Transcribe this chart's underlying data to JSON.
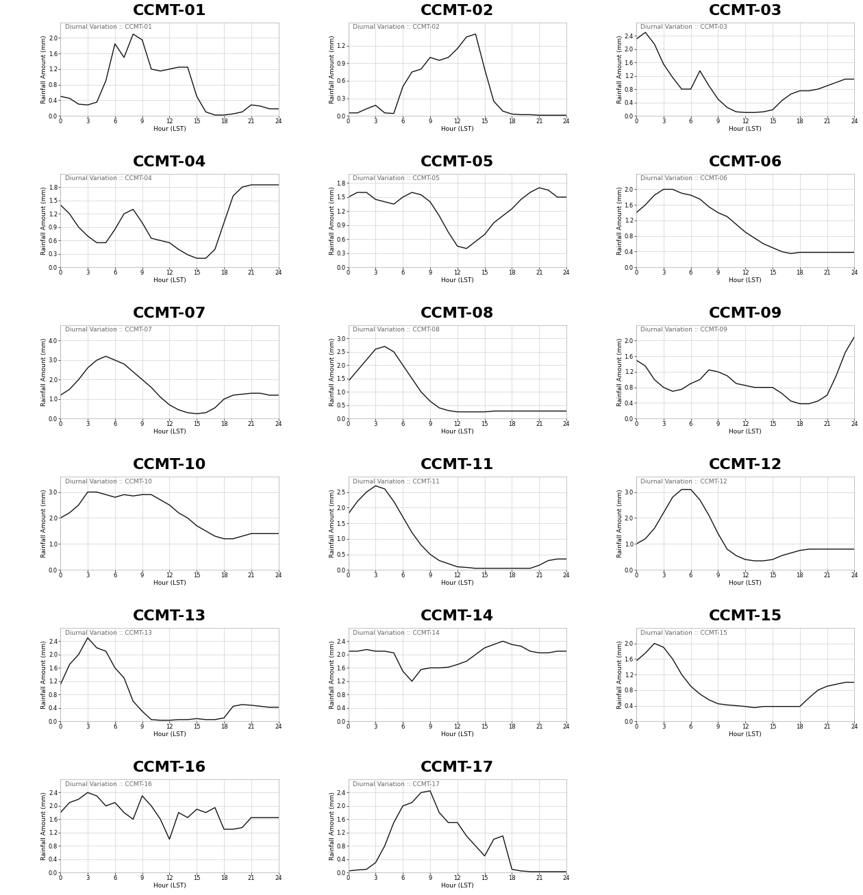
{
  "title_color": "#000000",
  "title_fontsize": 16,
  "title_fontweight": "bold",
  "subtitle_fontsize": 6.5,
  "subtitle_color": "#666666",
  "axis_label_fontsize": 6.5,
  "tick_fontsize": 6,
  "line_color": "#111111",
  "line_width": 1.0,
  "background_color": "#ffffff",
  "grid_color": "#d0d0d0",
  "plots": [
    {
      "title": "CCMT-01",
      "subtitle": "Diurnal Variation :: CCMT-01",
      "ylim": [
        0.0,
        2.4
      ],
      "yticks": [
        0.0,
        0.4,
        0.8,
        1.2,
        1.6,
        2.0
      ],
      "x": [
        0,
        1,
        2,
        3,
        4,
        5,
        6,
        7,
        8,
        9,
        10,
        11,
        12,
        13,
        14,
        15,
        16,
        17,
        18,
        19,
        20,
        21,
        22,
        23,
        24
      ],
      "y": [
        0.5,
        0.45,
        0.3,
        0.28,
        0.35,
        0.9,
        1.85,
        1.5,
        2.1,
        1.95,
        1.2,
        1.15,
        1.2,
        1.25,
        1.25,
        0.5,
        0.1,
        0.02,
        0.02,
        0.05,
        0.1,
        0.28,
        0.25,
        0.18,
        0.18
      ]
    },
    {
      "title": "CCMT-02",
      "subtitle": "Diurnal Variation :: CCMT-02",
      "ylim": [
        0.0,
        1.6
      ],
      "yticks": [
        0.0,
        0.3,
        0.6,
        0.9,
        1.2
      ],
      "x": [
        0,
        1,
        2,
        3,
        4,
        5,
        6,
        7,
        8,
        9,
        10,
        11,
        12,
        13,
        14,
        15,
        16,
        17,
        18,
        19,
        20,
        21,
        22,
        23,
        24
      ],
      "y": [
        0.05,
        0.05,
        0.12,
        0.18,
        0.05,
        0.04,
        0.5,
        0.75,
        0.8,
        1.0,
        0.95,
        1.0,
        1.15,
        1.35,
        1.4,
        0.8,
        0.25,
        0.08,
        0.03,
        0.02,
        0.02,
        0.01,
        0.01,
        0.01,
        0.01
      ]
    },
    {
      "title": "CCMT-03",
      "subtitle": "Diurnal Variation :: CCMT-03",
      "ylim": [
        0.0,
        2.8
      ],
      "yticks": [
        0.0,
        0.4,
        0.8,
        1.2,
        1.6,
        2.0,
        2.4
      ],
      "x": [
        0,
        1,
        2,
        3,
        4,
        5,
        6,
        7,
        8,
        9,
        10,
        11,
        12,
        13,
        14,
        15,
        16,
        17,
        18,
        19,
        20,
        21,
        22,
        23,
        24
      ],
      "y": [
        2.3,
        2.5,
        2.15,
        1.55,
        1.15,
        0.8,
        0.8,
        1.35,
        0.9,
        0.5,
        0.25,
        0.12,
        0.1,
        0.1,
        0.12,
        0.18,
        0.45,
        0.65,
        0.75,
        0.75,
        0.8,
        0.9,
        1.0,
        1.1,
        1.1
      ]
    },
    {
      "title": "CCMT-04",
      "subtitle": "Diurnal Variation :: CCMT-04",
      "ylim": [
        0.0,
        2.1
      ],
      "yticks": [
        0.0,
        0.3,
        0.6,
        0.9,
        1.2,
        1.5,
        1.8
      ],
      "x": [
        0,
        1,
        2,
        3,
        4,
        5,
        6,
        7,
        8,
        9,
        10,
        11,
        12,
        13,
        14,
        15,
        16,
        17,
        18,
        19,
        20,
        21,
        22,
        23,
        24
      ],
      "y": [
        1.4,
        1.2,
        0.9,
        0.7,
        0.55,
        0.55,
        0.85,
        1.2,
        1.3,
        1.0,
        0.65,
        0.6,
        0.55,
        0.4,
        0.28,
        0.2,
        0.2,
        0.4,
        1.0,
        1.6,
        1.8,
        1.85,
        1.85,
        1.85,
        1.85
      ]
    },
    {
      "title": "CCMT-05",
      "subtitle": "Diurnal Variation :: CCMT-05",
      "ylim": [
        0.0,
        2.0
      ],
      "yticks": [
        0.0,
        0.3,
        0.6,
        0.9,
        1.2,
        1.5,
        1.8
      ],
      "x": [
        0,
        1,
        2,
        3,
        4,
        5,
        6,
        7,
        8,
        9,
        10,
        11,
        12,
        13,
        14,
        15,
        16,
        17,
        18,
        19,
        20,
        21,
        22,
        23,
        24
      ],
      "y": [
        1.5,
        1.6,
        1.6,
        1.45,
        1.4,
        1.35,
        1.5,
        1.6,
        1.55,
        1.4,
        1.1,
        0.75,
        0.45,
        0.4,
        0.55,
        0.7,
        0.95,
        1.1,
        1.25,
        1.45,
        1.6,
        1.7,
        1.65,
        1.5,
        1.5
      ]
    },
    {
      "title": "CCMT-06",
      "subtitle": "Diurnal Variation :: CCMT-06",
      "ylim": [
        0.0,
        2.4
      ],
      "yticks": [
        0.0,
        0.4,
        0.8,
        1.2,
        1.6,
        2.0
      ],
      "x": [
        0,
        1,
        2,
        3,
        4,
        5,
        6,
        7,
        8,
        9,
        10,
        11,
        12,
        13,
        14,
        15,
        16,
        17,
        18,
        19,
        20,
        21,
        22,
        23,
        24
      ],
      "y": [
        1.4,
        1.6,
        1.85,
        2.0,
        2.0,
        1.9,
        1.85,
        1.75,
        1.55,
        1.4,
        1.3,
        1.1,
        0.9,
        0.75,
        0.6,
        0.5,
        0.4,
        0.35,
        0.38,
        0.38,
        0.38,
        0.38,
        0.38,
        0.38,
        0.38
      ]
    },
    {
      "title": "CCMT-07",
      "subtitle": "Diurnal Variation :: CCMT-07",
      "ylim": [
        0.0,
        4.8
      ],
      "yticks": [
        0.0,
        1.0,
        2.0,
        3.0,
        4.0
      ],
      "x": [
        0,
        1,
        2,
        3,
        4,
        5,
        6,
        7,
        8,
        9,
        10,
        11,
        12,
        13,
        14,
        15,
        16,
        17,
        18,
        19,
        20,
        21,
        22,
        23,
        24
      ],
      "y": [
        1.2,
        1.5,
        2.0,
        2.6,
        3.0,
        3.2,
        3.0,
        2.8,
        2.4,
        2.0,
        1.6,
        1.1,
        0.7,
        0.45,
        0.3,
        0.25,
        0.3,
        0.55,
        1.0,
        1.2,
        1.25,
        1.3,
        1.3,
        1.2,
        1.2
      ]
    },
    {
      "title": "CCMT-08",
      "subtitle": "Diurnal Variation :: CCMT-08",
      "ylim": [
        0.0,
        3.5
      ],
      "yticks": [
        0.0,
        0.5,
        1.0,
        1.5,
        2.0,
        2.5,
        3.0
      ],
      "x": [
        0,
        1,
        2,
        3,
        4,
        5,
        6,
        7,
        8,
        9,
        10,
        11,
        12,
        13,
        14,
        15,
        16,
        17,
        18,
        19,
        20,
        21,
        22,
        23,
        24
      ],
      "y": [
        1.4,
        1.8,
        2.2,
        2.6,
        2.7,
        2.5,
        2.0,
        1.5,
        1.0,
        0.65,
        0.4,
        0.3,
        0.25,
        0.25,
        0.25,
        0.25,
        0.28,
        0.28,
        0.28,
        0.28,
        0.28,
        0.28,
        0.28,
        0.28,
        0.28
      ]
    },
    {
      "title": "CCMT-09",
      "subtitle": "Diurnal Variation :: CCMT-09",
      "ylim": [
        0.0,
        2.4
      ],
      "yticks": [
        0.0,
        0.4,
        0.8,
        1.2,
        1.6,
        2.0
      ],
      "x": [
        0,
        1,
        2,
        3,
        4,
        5,
        6,
        7,
        8,
        9,
        10,
        11,
        12,
        13,
        14,
        15,
        16,
        17,
        18,
        19,
        20,
        21,
        22,
        23,
        24
      ],
      "y": [
        1.5,
        1.35,
        1.0,
        0.8,
        0.7,
        0.75,
        0.9,
        1.0,
        1.25,
        1.2,
        1.1,
        0.9,
        0.85,
        0.8,
        0.8,
        0.8,
        0.65,
        0.45,
        0.38,
        0.38,
        0.45,
        0.6,
        1.1,
        1.7,
        2.1
      ]
    },
    {
      "title": "CCMT-10",
      "subtitle": "Diurnal Variation :: CCMT-10",
      "ylim": [
        0.0,
        3.6
      ],
      "yticks": [
        0.0,
        1.0,
        2.0,
        3.0
      ],
      "x": [
        0,
        1,
        2,
        3,
        4,
        5,
        6,
        7,
        8,
        9,
        10,
        11,
        12,
        13,
        14,
        15,
        16,
        17,
        18,
        19,
        20,
        21,
        22,
        23,
        24
      ],
      "y": [
        2.0,
        2.2,
        2.5,
        3.0,
        3.0,
        2.9,
        2.8,
        2.9,
        2.85,
        2.9,
        2.9,
        2.7,
        2.5,
        2.2,
        2.0,
        1.7,
        1.5,
        1.3,
        1.2,
        1.2,
        1.3,
        1.4,
        1.4,
        1.4,
        1.4
      ]
    },
    {
      "title": "CCMT-11",
      "subtitle": "Diurnal Variation :: CCMT-11",
      "ylim": [
        0.0,
        3.0
      ],
      "yticks": [
        0.0,
        0.5,
        1.0,
        1.5,
        2.0,
        2.5
      ],
      "x": [
        0,
        1,
        2,
        3,
        4,
        5,
        6,
        7,
        8,
        9,
        10,
        11,
        12,
        13,
        14,
        15,
        16,
        17,
        18,
        19,
        20,
        21,
        22,
        23,
        24
      ],
      "y": [
        1.8,
        2.2,
        2.5,
        2.7,
        2.6,
        2.2,
        1.7,
        1.2,
        0.8,
        0.5,
        0.3,
        0.2,
        0.1,
        0.08,
        0.05,
        0.05,
        0.05,
        0.05,
        0.05,
        0.05,
        0.05,
        0.15,
        0.3,
        0.35,
        0.35
      ]
    },
    {
      "title": "CCMT-12",
      "subtitle": "Diurnal Variation :: CCMT-12",
      "ylim": [
        0.0,
        3.6
      ],
      "yticks": [
        0.0,
        1.0,
        2.0,
        3.0
      ],
      "x": [
        0,
        1,
        2,
        3,
        4,
        5,
        6,
        7,
        8,
        9,
        10,
        11,
        12,
        13,
        14,
        15,
        16,
        17,
        18,
        19,
        20,
        21,
        22,
        23,
        24
      ],
      "y": [
        1.0,
        1.2,
        1.6,
        2.2,
        2.8,
        3.1,
        3.1,
        2.7,
        2.1,
        1.4,
        0.8,
        0.55,
        0.4,
        0.35,
        0.35,
        0.4,
        0.55,
        0.65,
        0.75,
        0.8,
        0.8,
        0.8,
        0.8,
        0.8,
        0.8
      ]
    },
    {
      "title": "CCMT-13",
      "subtitle": "Diurnal Variation :: CCMT-13",
      "ylim": [
        0.0,
        2.8
      ],
      "yticks": [
        0.0,
        0.4,
        0.8,
        1.2,
        1.6,
        2.0,
        2.4
      ],
      "x": [
        0,
        1,
        2,
        3,
        4,
        5,
        6,
        7,
        8,
        9,
        10,
        11,
        12,
        13,
        14,
        15,
        16,
        17,
        18,
        19,
        20,
        21,
        22,
        23,
        24
      ],
      "y": [
        1.1,
        1.7,
        2.0,
        2.5,
        2.2,
        2.1,
        1.6,
        1.3,
        0.6,
        0.3,
        0.05,
        0.03,
        0.03,
        0.05,
        0.05,
        0.08,
        0.05,
        0.05,
        0.1,
        0.45,
        0.5,
        0.48,
        0.45,
        0.42,
        0.42
      ]
    },
    {
      "title": "CCMT-14",
      "subtitle": "Diurnal Variation :: CCMT-14",
      "ylim": [
        0.0,
        2.8
      ],
      "yticks": [
        0.0,
        0.4,
        0.8,
        1.2,
        1.6,
        2.0,
        2.4
      ],
      "x": [
        0,
        1,
        2,
        3,
        4,
        5,
        6,
        7,
        8,
        9,
        10,
        11,
        12,
        13,
        14,
        15,
        16,
        17,
        18,
        19,
        20,
        21,
        22,
        23,
        24
      ],
      "y": [
        2.1,
        2.1,
        2.15,
        2.1,
        2.1,
        2.05,
        1.5,
        1.2,
        1.55,
        1.6,
        1.6,
        1.62,
        1.7,
        1.8,
        2.0,
        2.2,
        2.3,
        2.4,
        2.3,
        2.25,
        2.1,
        2.05,
        2.05,
        2.1,
        2.1
      ]
    },
    {
      "title": "CCMT-15",
      "subtitle": "Diurnal Variation :: CCMT-15",
      "ylim": [
        0.0,
        2.4
      ],
      "yticks": [
        0.0,
        0.4,
        0.8,
        1.2,
        1.6,
        2.0
      ],
      "x": [
        0,
        1,
        2,
        3,
        4,
        5,
        6,
        7,
        8,
        9,
        10,
        11,
        12,
        13,
        14,
        15,
        16,
        17,
        18,
        19,
        20,
        21,
        22,
        23,
        24
      ],
      "y": [
        1.55,
        1.75,
        2.0,
        1.9,
        1.6,
        1.2,
        0.9,
        0.7,
        0.55,
        0.45,
        0.42,
        0.4,
        0.38,
        0.35,
        0.38,
        0.38,
        0.38,
        0.38,
        0.38,
        0.6,
        0.8,
        0.9,
        0.95,
        1.0,
        1.0
      ]
    },
    {
      "title": "CCMT-16",
      "subtitle": "Diurnal Variation :: CCMT-16",
      "ylim": [
        0.0,
        2.8
      ],
      "yticks": [
        0.0,
        0.4,
        0.8,
        1.2,
        1.6,
        2.0,
        2.4
      ],
      "x": [
        0,
        1,
        2,
        3,
        4,
        5,
        6,
        7,
        8,
        9,
        10,
        11,
        12,
        13,
        14,
        15,
        16,
        17,
        18,
        19,
        20,
        21,
        22,
        23,
        24
      ],
      "y": [
        1.8,
        2.1,
        2.2,
        2.4,
        2.3,
        2.0,
        2.1,
        1.8,
        1.6,
        2.3,
        2.0,
        1.6,
        1.0,
        1.8,
        1.65,
        1.9,
        1.8,
        1.95,
        1.3,
        1.3,
        1.35,
        1.65,
        1.65,
        1.65,
        1.65
      ]
    },
    {
      "title": "CCMT-17",
      "subtitle": "Diurnal Variation :: CCMT-17",
      "ylim": [
        0.0,
        2.8
      ],
      "yticks": [
        0.0,
        0.4,
        0.8,
        1.2,
        1.6,
        2.0,
        2.4
      ],
      "x": [
        0,
        1,
        2,
        3,
        4,
        5,
        6,
        7,
        8,
        9,
        10,
        11,
        12,
        13,
        14,
        15,
        16,
        17,
        18,
        19,
        20,
        21,
        22,
        23,
        24
      ],
      "y": [
        0.05,
        0.08,
        0.1,
        0.3,
        0.8,
        1.5,
        2.0,
        2.1,
        2.4,
        2.45,
        1.8,
        1.5,
        1.5,
        1.1,
        0.8,
        0.5,
        1.0,
        1.1,
        0.1,
        0.05,
        0.03,
        0.03,
        0.03,
        0.03,
        0.03
      ]
    }
  ]
}
